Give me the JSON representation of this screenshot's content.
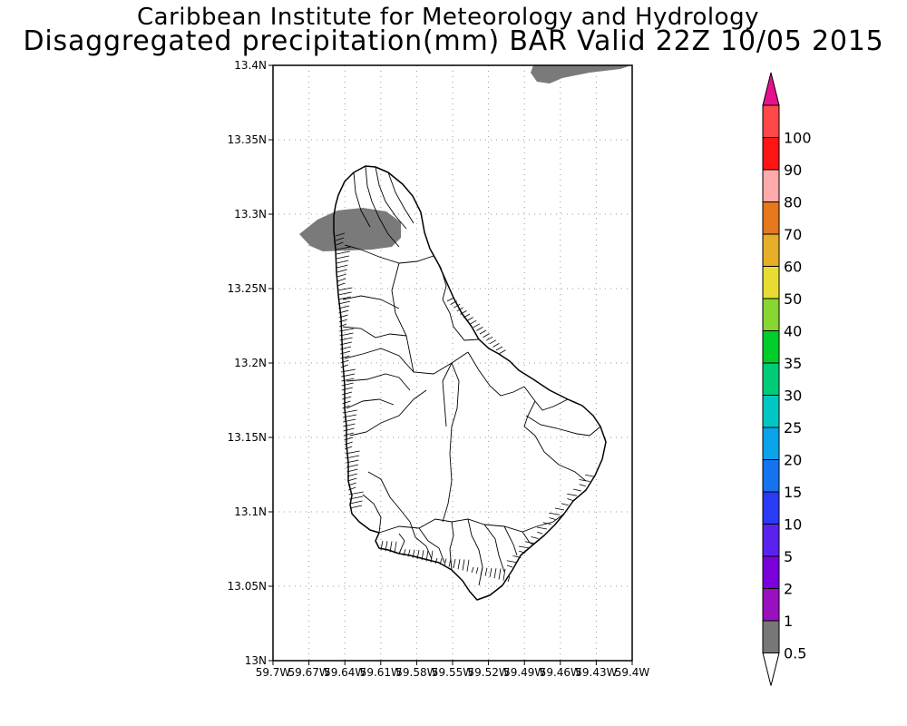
{
  "header": {
    "institute": "Caribbean Institute for Meteorology and Hydrology",
    "product": "Disaggregated precipitation(mm) BAR Valid 22Z 10/05 2015"
  },
  "map": {
    "lat_ticks": [
      "13.4N",
      "13.35N",
      "13.3N",
      "13.25N",
      "13.2N",
      "13.15N",
      "13.1N",
      "13.05N",
      "13N"
    ],
    "lon_ticks": [
      "59.7W",
      "59.67W",
      "59.64W",
      "59.61W",
      "59.58W",
      "59.55W",
      "59.52W",
      "59.49W",
      "59.46W",
      "59.43W",
      "59.4W"
    ],
    "lat_range": [
      13.0,
      13.4
    ],
    "lon_range": [
      -59.7,
      -59.4
    ],
    "grid": "dotted",
    "precip_fill_color": "#7a7a7a"
  },
  "colorbar": {
    "labels": [
      "0.5",
      "1",
      "2",
      "5",
      "10",
      "15",
      "20",
      "25",
      "30",
      "35",
      "40",
      "50",
      "60",
      "70",
      "80",
      "90",
      "100"
    ],
    "colors": [
      "#777777",
      "#9a0fc0",
      "#7a00dc",
      "#5b22ee",
      "#2a3af5",
      "#1673f0",
      "#0aa3ea",
      "#00c7c4",
      "#00cc78",
      "#00cc2a",
      "#88d632",
      "#e6dc32",
      "#e6ae28",
      "#e6781e",
      "#ffaaaa",
      "#ff1414",
      "#ff4848"
    ],
    "under_color": "#ffffff",
    "over_color": "#e6118e"
  }
}
